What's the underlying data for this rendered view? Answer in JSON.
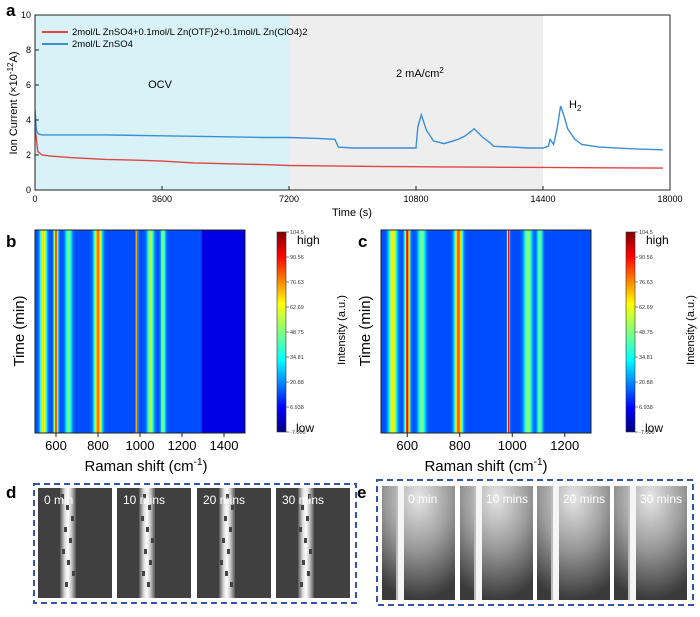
{
  "panel_letters": {
    "a": "a",
    "b": "b",
    "c": "c",
    "d": "d",
    "e": "e"
  },
  "colors": {
    "red": "#e04545",
    "blue": "#3a8fd6",
    "ocv_bg": "#d8f2f7",
    "gc_bg": "#eeeeee",
    "dash": "#3355aa"
  },
  "chart_data": [
    {
      "id": "a",
      "type": "line",
      "ylabel": "Ion Current (×10",
      "ylabel_sup": "-12",
      "ylabel_unit": "A)",
      "xlabel": "Time (s)",
      "xlim": [
        0,
        18000
      ],
      "ylim": [
        0,
        10
      ],
      "xticks": [
        0,
        3600,
        7200,
        10800,
        14400,
        18000
      ],
      "yticks": [
        0,
        2,
        4,
        6,
        8,
        10
      ],
      "regions": [
        {
          "label": "OCV",
          "x0": 0,
          "x1": 7200
        },
        {
          "label": "2 mA/cm",
          "label_sup": "2",
          "x0": 7200,
          "x1": 14400
        }
      ],
      "annotation": {
        "label": "H",
        "label_sub": "2"
      },
      "legend": [
        {
          "label": "2mol/L ZnSO4+0.1mol/L Zn(OTF)2+0.1mol/L Zn(ClO4)2",
          "color": "#e04545"
        },
        {
          "label": "2mol/L ZnSO4",
          "color": "#3a8fd6"
        }
      ],
      "series": [
        {
          "name": "2mol/L ZnSO4+0.1mol/L Zn(OTF)2+0.1mol/L Zn(ClO4)2",
          "color": "#e04545",
          "x": [
            0,
            80,
            200,
            400,
            1000,
            2000,
            3000,
            3600,
            4500,
            5500,
            6500,
            7200,
            8000,
            9000,
            10000,
            10800,
            11500,
            12500,
            13500,
            14400,
            15000,
            16000,
            17000,
            17800
          ],
          "y": [
            3.6,
            2.2,
            2.0,
            1.95,
            1.85,
            1.75,
            1.7,
            1.65,
            1.55,
            1.5,
            1.45,
            1.4,
            1.38,
            1.36,
            1.34,
            1.33,
            1.32,
            1.31,
            1.3,
            1.29,
            1.28,
            1.27,
            1.26,
            1.25
          ]
        },
        {
          "name": "2mol/L ZnSO4",
          "color": "#3a8fd6",
          "x": [
            0,
            40,
            100,
            200,
            1000,
            2000,
            3600,
            5000,
            6500,
            7200,
            8000,
            8500,
            8600,
            9000,
            10000,
            10800,
            10850,
            10950,
            11100,
            11300,
            11600,
            12000,
            12200,
            12450,
            12700,
            12900,
            13000,
            13500,
            14000,
            14400,
            14550,
            14600,
            14700,
            14800,
            14900,
            15000,
            15100,
            15300,
            15500,
            16000,
            17000,
            17800
          ],
          "y": [
            4.6,
            3.4,
            3.2,
            3.15,
            3.15,
            3.15,
            3.1,
            3.05,
            3.0,
            3.0,
            2.95,
            2.9,
            2.45,
            2.4,
            2.4,
            2.4,
            3.6,
            4.3,
            3.4,
            2.8,
            2.65,
            2.9,
            3.1,
            3.5,
            3.0,
            2.7,
            2.5,
            2.45,
            2.4,
            2.4,
            2.5,
            2.9,
            2.6,
            3.5,
            4.8,
            4.2,
            3.5,
            2.9,
            2.6,
            2.45,
            2.35,
            2.3
          ]
        }
      ]
    },
    {
      "id": "b",
      "type": "heatmap",
      "xlabel": "Raman shift (cm",
      "xlabel_sup": "-1",
      "xlabel_end": ")",
      "ylabel": "Time (min)",
      "xlim": [
        500,
        1500
      ],
      "xticks": [
        600,
        800,
        1000,
        1200,
        1400
      ],
      "fill_until": 1290,
      "bands": [
        {
          "center": 540,
          "width": 30,
          "level": 0.48
        },
        {
          "center": 600,
          "width": 18,
          "level": 0.65
        },
        {
          "center": 660,
          "width": 30,
          "level": 0.3
        },
        {
          "center": 800,
          "width": 35,
          "level": 0.58
        },
        {
          "center": 985,
          "width": 8,
          "level": 0.72
        },
        {
          "center": 1050,
          "width": 30,
          "level": 0.36
        },
        {
          "center": 1110,
          "width": 22,
          "level": 0.32
        }
      ]
    },
    {
      "id": "c",
      "type": "heatmap",
      "xlabel": "Raman shift (cm",
      "xlabel_sup": "-1",
      "xlabel_end": ")",
      "ylabel": "Time (min)",
      "xlim": [
        500,
        1300
      ],
      "xticks": [
        600,
        800,
        1000,
        1200
      ],
      "fill_until": 1300,
      "bands": [
        {
          "center": 545,
          "width": 30,
          "level": 0.45
        },
        {
          "center": 600,
          "width": 18,
          "level": 0.7
        },
        {
          "center": 655,
          "width": 28,
          "level": 0.3
        },
        {
          "center": 795,
          "width": 28,
          "level": 0.6
        },
        {
          "center": 985,
          "width": 8,
          "level": 0.75
        },
        {
          "center": 1060,
          "width": 30,
          "level": 0.33
        },
        {
          "center": 1105,
          "width": 20,
          "level": 0.3
        }
      ]
    }
  ],
  "colorbar": {
    "ticks": [
      "104.5",
      "90.56",
      "76.63",
      "62.69",
      "48.75",
      "34.81",
      "20.88",
      "6.938",
      "-7.000"
    ],
    "high": "high",
    "low": "low",
    "label": "Intensity (a.u.)"
  },
  "snapshots_d": [
    "0 min",
    "10 mins",
    "20 mins",
    "30 mins"
  ],
  "snapshots_e": [
    "0 min",
    "10 mins",
    "20 mins",
    "30 mins"
  ]
}
